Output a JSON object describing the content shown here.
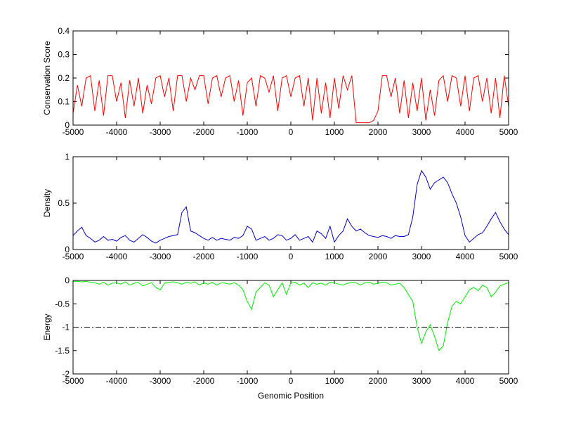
{
  "chart_data": [
    {
      "type": "line",
      "ylabel": "Conservation Score",
      "x": [
        -5000,
        -4900,
        -4800,
        -4700,
        -4600,
        -4500,
        -4400,
        -4300,
        -4200,
        -4100,
        -4000,
        -3900,
        -3800,
        -3700,
        -3600,
        -3500,
        -3400,
        -3300,
        -3200,
        -3100,
        -3000,
        -2900,
        -2800,
        -2700,
        -2600,
        -2500,
        -2400,
        -2300,
        -2200,
        -2100,
        -2000,
        -1900,
        -1800,
        -1700,
        -1600,
        -1500,
        -1400,
        -1300,
        -1200,
        -1100,
        -1000,
        -900,
        -800,
        -700,
        -600,
        -500,
        -400,
        -300,
        -200,
        -100,
        0,
        100,
        200,
        300,
        400,
        500,
        600,
        700,
        800,
        900,
        1000,
        1100,
        1200,
        1300,
        1400,
        1500,
        1600,
        1700,
        1800,
        1900,
        2000,
        2100,
        2200,
        2300,
        2400,
        2500,
        2600,
        2700,
        2800,
        2900,
        3000,
        3100,
        3200,
        3300,
        3400,
        3500,
        3600,
        3700,
        3800,
        3900,
        4000,
        4100,
        4200,
        4300,
        4400,
        4500,
        4600,
        4700,
        4800,
        4900,
        5000
      ],
      "series": [
        {
          "color": "#ff0000",
          "values": [
            0.05,
            0.17,
            0.08,
            0.2,
            0.21,
            0.06,
            0.19,
            0.04,
            0.21,
            0.21,
            0.1,
            0.18,
            0.03,
            0.19,
            0.08,
            0.2,
            0.05,
            0.17,
            0.09,
            0.2,
            0.21,
            0.12,
            0.2,
            0.06,
            0.21,
            0.21,
            0.1,
            0.2,
            0.15,
            0.21,
            0.21,
            0.09,
            0.2,
            0.21,
            0.12,
            0.2,
            0.21,
            0.1,
            0.19,
            0.04,
            0.18,
            0.2,
            0.08,
            0.21,
            0.2,
            0.14,
            0.21,
            0.06,
            0.2,
            0.21,
            0.12,
            0.2,
            0.21,
            0.08,
            0.2,
            0.02,
            0.2,
            0.05,
            0.18,
            0.03,
            0.2,
            0.07,
            0.21,
            0.15,
            0.21,
            0.01,
            0.01,
            0.01,
            0.01,
            0.02,
            0.06,
            0.21,
            0.21,
            0.12,
            0.2,
            0.05,
            0.19,
            0.03,
            0.18,
            0.06,
            0.2,
            0.02,
            0.15,
            0.04,
            0.19,
            0.21,
            0.1,
            0.21,
            0.2,
            0.08,
            0.21,
            0.06,
            0.2,
            0.21,
            0.1,
            0.2,
            0.05,
            0.2,
            0.03,
            0.21,
            0.08
          ]
        }
      ],
      "xlim": [
        -5000,
        5000
      ],
      "xticks": [
        -5000,
        -4000,
        -3000,
        -2000,
        -1000,
        0,
        1000,
        2000,
        3000,
        4000,
        5000
      ],
      "ylim": [
        0,
        0.4
      ],
      "yticks": [
        0,
        0.1,
        0.2,
        0.3,
        0.4
      ]
    },
    {
      "type": "line",
      "ylabel": "Density",
      "x": [
        -5000,
        -4900,
        -4800,
        -4700,
        -4600,
        -4500,
        -4400,
        -4300,
        -4200,
        -4100,
        -4000,
        -3900,
        -3800,
        -3700,
        -3600,
        -3500,
        -3400,
        -3300,
        -3200,
        -3100,
        -3000,
        -2900,
        -2800,
        -2700,
        -2600,
        -2500,
        -2400,
        -2300,
        -2200,
        -2100,
        -2000,
        -1900,
        -1800,
        -1700,
        -1600,
        -1500,
        -1400,
        -1300,
        -1200,
        -1100,
        -1000,
        -900,
        -800,
        -700,
        -600,
        -500,
        -400,
        -300,
        -200,
        -100,
        0,
        100,
        200,
        300,
        400,
        500,
        600,
        700,
        800,
        900,
        1000,
        1100,
        1200,
        1300,
        1400,
        1500,
        1600,
        1700,
        1800,
        1900,
        2000,
        2100,
        2200,
        2300,
        2400,
        2500,
        2600,
        2700,
        2800,
        2900,
        3000,
        3100,
        3200,
        3300,
        3400,
        3500,
        3600,
        3700,
        3800,
        3900,
        4000,
        4100,
        4200,
        4300,
        4400,
        4500,
        4600,
        4700,
        4800,
        4900,
        5000
      ],
      "series": [
        {
          "color": "#0000cc",
          "values": [
            0.15,
            0.2,
            0.24,
            0.15,
            0.12,
            0.08,
            0.1,
            0.14,
            0.1,
            0.11,
            0.09,
            0.13,
            0.15,
            0.1,
            0.08,
            0.12,
            0.16,
            0.13,
            0.09,
            0.07,
            0.1,
            0.12,
            0.14,
            0.15,
            0.16,
            0.4,
            0.46,
            0.2,
            0.18,
            0.15,
            0.12,
            0.1,
            0.13,
            0.1,
            0.12,
            0.11,
            0.1,
            0.13,
            0.12,
            0.15,
            0.25,
            0.22,
            0.1,
            0.12,
            0.14,
            0.1,
            0.12,
            0.16,
            0.15,
            0.1,
            0.12,
            0.16,
            0.1,
            0.12,
            0.14,
            0.08,
            0.2,
            0.17,
            0.12,
            0.25,
            0.08,
            0.15,
            0.2,
            0.33,
            0.25,
            0.2,
            0.22,
            0.18,
            0.15,
            0.14,
            0.13,
            0.15,
            0.14,
            0.12,
            0.15,
            0.14,
            0.14,
            0.16,
            0.35,
            0.7,
            0.85,
            0.78,
            0.65,
            0.72,
            0.75,
            0.78,
            0.72,
            0.6,
            0.5,
            0.35,
            0.15,
            0.08,
            0.12,
            0.16,
            0.18,
            0.25,
            0.33,
            0.4,
            0.3,
            0.22,
            0.16
          ]
        }
      ],
      "xlim": [
        -5000,
        5000
      ],
      "xticks": [
        -5000,
        -4000,
        -3000,
        -2000,
        -1000,
        0,
        1000,
        2000,
        3000,
        4000,
        5000
      ],
      "ylim": [
        0,
        1
      ],
      "yticks": [
        0,
        0.5,
        1
      ]
    },
    {
      "type": "line",
      "ylabel": "Energy",
      "xlabel": "Genomic Position",
      "x": [
        -5000,
        -4900,
        -4800,
        -4700,
        -4600,
        -4500,
        -4400,
        -4300,
        -4200,
        -4100,
        -4000,
        -3900,
        -3800,
        -3700,
        -3600,
        -3500,
        -3400,
        -3300,
        -3200,
        -3100,
        -3000,
        -2900,
        -2800,
        -2700,
        -2600,
        -2500,
        -2400,
        -2300,
        -2200,
        -2100,
        -2000,
        -1900,
        -1800,
        -1700,
        -1600,
        -1500,
        -1400,
        -1300,
        -1200,
        -1100,
        -1000,
        -900,
        -800,
        -700,
        -600,
        -500,
        -400,
        -300,
        -200,
        -100,
        0,
        100,
        200,
        300,
        400,
        500,
        600,
        700,
        800,
        900,
        1000,
        1100,
        1200,
        1300,
        1400,
        1500,
        1600,
        1700,
        1800,
        1900,
        2000,
        2100,
        2200,
        2300,
        2400,
        2500,
        2600,
        2700,
        2800,
        2900,
        3000,
        3100,
        3200,
        3300,
        3400,
        3500,
        3600,
        3700,
        3800,
        3900,
        4000,
        4100,
        4200,
        4300,
        4400,
        4500,
        4600,
        4700,
        4800,
        4900,
        5000
      ],
      "series": [
        {
          "color": "#00ee00",
          "values": [
            -0.02,
            -0.02,
            -0.03,
            -0.02,
            -0.04,
            -0.05,
            -0.08,
            -0.04,
            -0.1,
            -0.06,
            -0.05,
            -0.08,
            -0.03,
            -0.1,
            -0.06,
            -0.04,
            -0.12,
            -0.08,
            -0.05,
            -0.15,
            -0.2,
            -0.06,
            -0.04,
            -0.03,
            -0.05,
            -0.08,
            -0.04,
            -0.06,
            -0.03,
            -0.1,
            -0.05,
            -0.08,
            -0.04,
            -0.1,
            -0.05,
            -0.06,
            -0.08,
            -0.05,
            -0.1,
            -0.2,
            -0.45,
            -0.62,
            -0.25,
            -0.15,
            -0.05,
            -0.1,
            -0.35,
            -0.2,
            -0.05,
            -0.3,
            -0.05,
            -0.04,
            -0.1,
            -0.06,
            -0.15,
            -0.05,
            -0.08,
            -0.06,
            -0.1,
            -0.04,
            -0.05,
            -0.08,
            -0.1,
            -0.06,
            -0.04,
            -0.05,
            -0.1,
            -0.05,
            -0.04,
            -0.08,
            -0.06,
            -0.04,
            -0.05,
            -0.1,
            -0.08,
            -0.06,
            -0.15,
            -0.3,
            -0.45,
            -1.0,
            -1.35,
            -1.1,
            -0.95,
            -1.2,
            -1.5,
            -1.4,
            -0.9,
            -0.55,
            -0.45,
            -0.5,
            -0.35,
            -0.2,
            -0.15,
            -0.22,
            -0.1,
            -0.15,
            -0.35,
            -0.25,
            -0.12,
            -0.08,
            -0.05
          ]
        }
      ],
      "hline": -1,
      "xlim": [
        -5000,
        5000
      ],
      "xticks": [
        -5000,
        -4000,
        -3000,
        -2000,
        -1000,
        0,
        1000,
        2000,
        3000,
        4000,
        5000
      ],
      "ylim": [
        -2,
        0
      ],
      "yticks": [
        -2,
        -1.5,
        -1,
        -0.5,
        0
      ]
    }
  ]
}
